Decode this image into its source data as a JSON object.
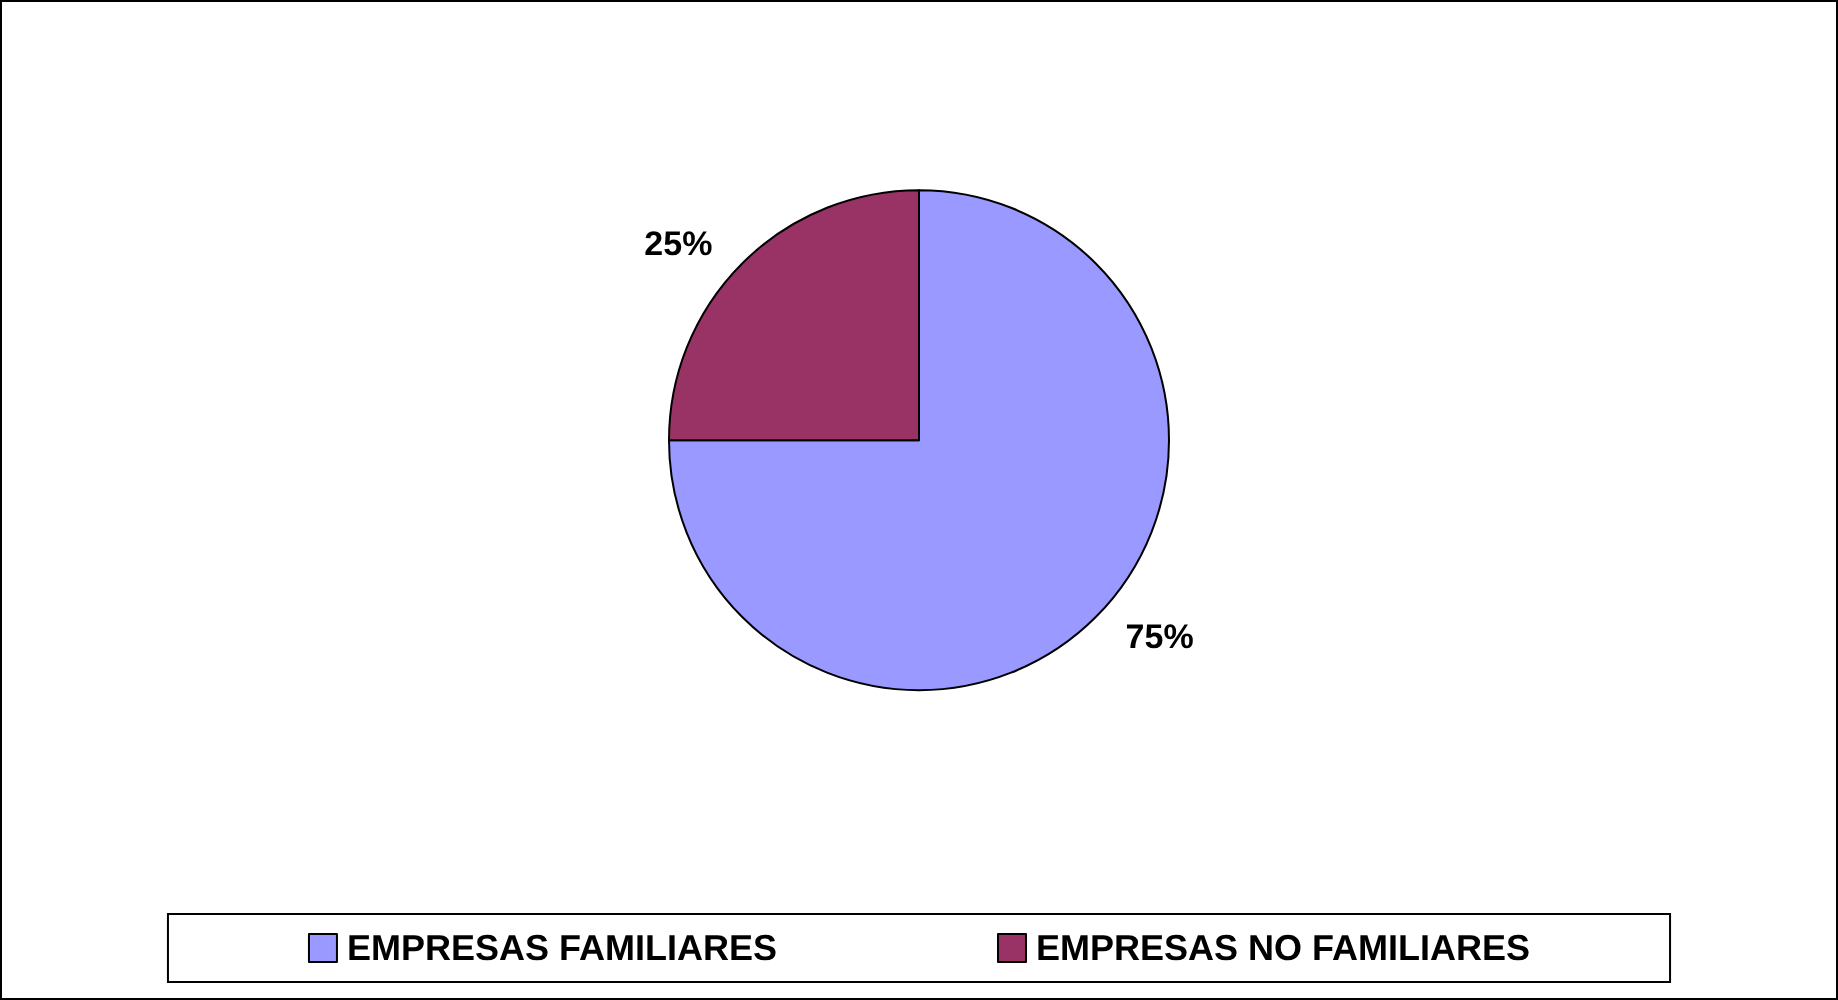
{
  "chart_data": {
    "type": "pie",
    "categories": [
      "EMPRESAS FAMILIARES",
      "EMPRESAS NO FAMILIARES"
    ],
    "values": [
      75,
      25
    ],
    "colors": [
      "#9999ff",
      "#993366"
    ],
    "value_labels": [
      "75%",
      "25%"
    ],
    "legend": "bottom"
  }
}
